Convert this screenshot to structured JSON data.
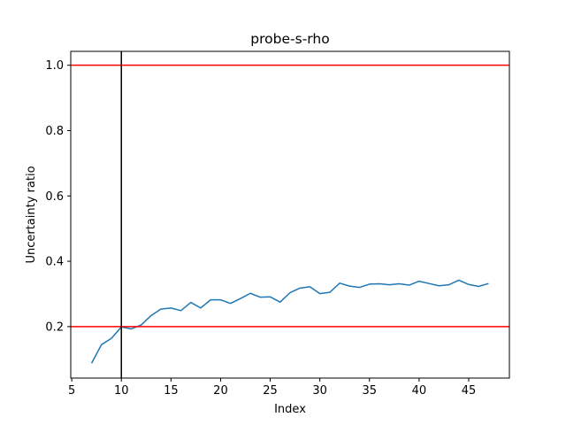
{
  "chart_data": {
    "type": "line",
    "title": "probe-s-rho",
    "xlabel": "Index",
    "ylabel": "Uncertainty ratio",
    "xlim": [
      4.9,
      49.1
    ],
    "ylim": [
      0.0425,
      1.0425
    ],
    "xticks": [
      5,
      10,
      15,
      20,
      25,
      30,
      35,
      40,
      45
    ],
    "yticks": [
      0.2,
      0.4,
      0.6,
      0.8,
      1.0
    ],
    "ytick_labels": [
      "0.2",
      "0.4",
      "0.6",
      "0.8",
      "1.0"
    ],
    "grid": false,
    "series": [
      {
        "color": "#1f77b4",
        "x": [
          7,
          8,
          9,
          10,
          11,
          12,
          13,
          14,
          15,
          16,
          17,
          18,
          19,
          20,
          21,
          22,
          23,
          24,
          25,
          26,
          27,
          28,
          29,
          30,
          31,
          32,
          33,
          34,
          35,
          36,
          37,
          38,
          39,
          40,
          41,
          42,
          43,
          44,
          45,
          46,
          47
        ],
        "y": [
          0.088,
          0.145,
          0.164,
          0.199,
          0.193,
          0.205,
          0.234,
          0.254,
          0.257,
          0.249,
          0.274,
          0.257,
          0.282,
          0.282,
          0.271,
          0.286,
          0.302,
          0.29,
          0.291,
          0.275,
          0.304,
          0.318,
          0.322,
          0.301,
          0.305,
          0.333,
          0.324,
          0.32,
          0.33,
          0.331,
          0.328,
          0.331,
          0.327,
          0.339,
          0.332,
          0.325,
          0.328,
          0.342,
          0.329,
          0.323,
          0.332
        ]
      }
    ],
    "hlines": [
      {
        "y": 1.0,
        "color": "#ff0000"
      },
      {
        "y": 0.2,
        "color": "#ff0000"
      }
    ],
    "vlines": [
      {
        "x": 10,
        "color": "#000000"
      }
    ]
  }
}
